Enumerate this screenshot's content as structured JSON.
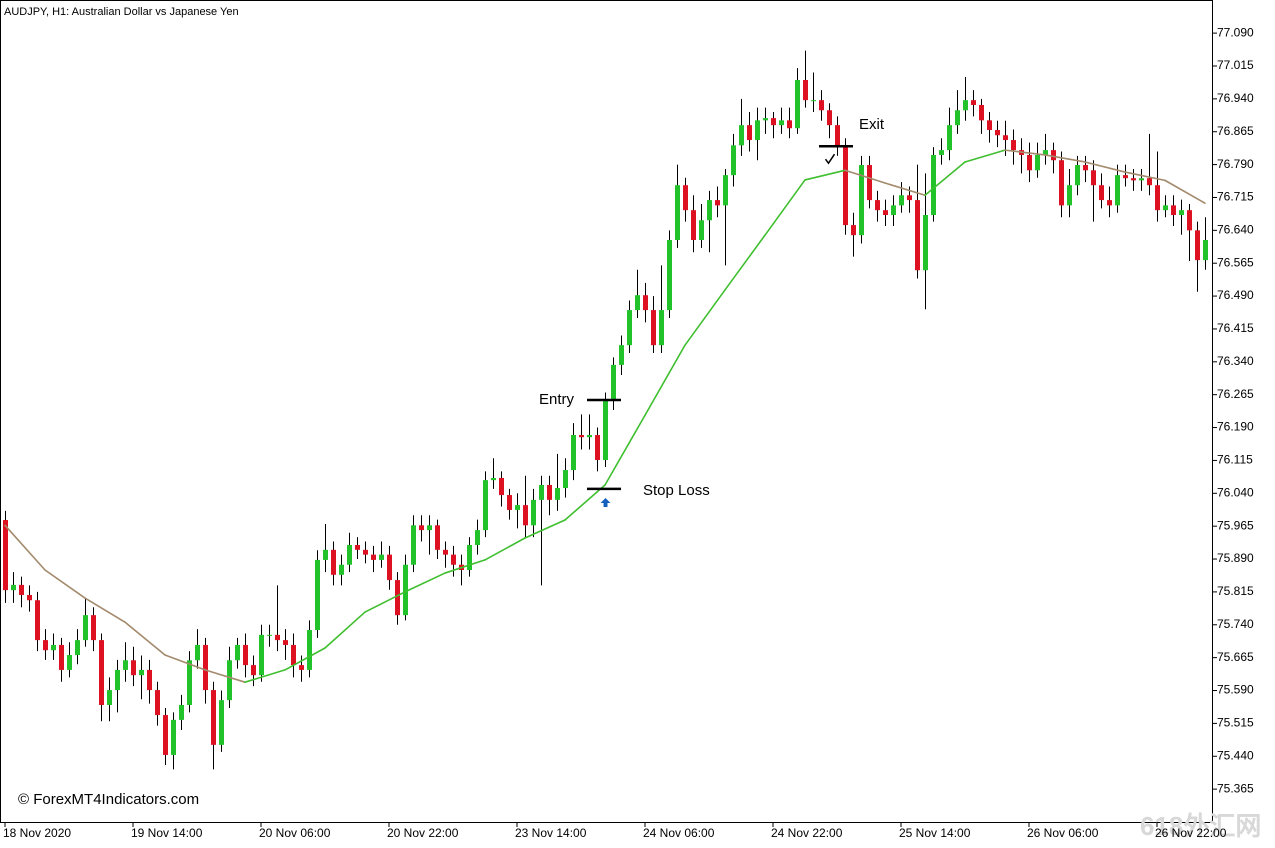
{
  "chart_data": {
    "type": "candlestick",
    "title": "AUDJPY, H1:  Australian Dollar vs Japanese Yen",
    "categories": [
      "18 Nov 2020",
      null,
      null,
      null,
      null,
      null,
      null,
      null,
      null,
      null,
      null,
      null,
      null,
      null,
      null,
      null,
      "19 Nov 14:00",
      null,
      null,
      null,
      null,
      null,
      null,
      null,
      null,
      null,
      null,
      null,
      null,
      null,
      null,
      null,
      "20 Nov 06:00",
      null,
      null,
      null,
      null,
      null,
      null,
      null,
      null,
      null,
      null,
      null,
      null,
      null,
      null,
      null,
      "20 Nov 22:00",
      null,
      null,
      null,
      null,
      null,
      null,
      null,
      null,
      null,
      null,
      null,
      null,
      null,
      null,
      null,
      "23 Nov 14:00",
      null,
      null,
      null,
      null,
      null,
      null,
      null,
      null,
      null,
      null,
      null,
      null,
      null,
      null,
      null,
      "24 Nov 06:00",
      null,
      null,
      null,
      null,
      null,
      null,
      null,
      null,
      null,
      null,
      null,
      null,
      null,
      null,
      null,
      "24 Nov 22:00",
      null,
      null,
      null,
      null,
      null,
      null,
      null,
      null,
      null,
      null,
      null,
      null,
      null,
      null,
      null,
      "25 Nov 14:00",
      null,
      null,
      null,
      null,
      null,
      null,
      null,
      null,
      null,
      null,
      null,
      null,
      null,
      null,
      null,
      "26 Nov 06:00",
      null,
      null,
      null,
      null,
      null,
      null,
      null,
      null,
      null,
      null,
      null,
      null,
      null,
      null,
      null,
      "26 Nov 22:00",
      null,
      null,
      null,
      null,
      null,
      null
    ],
    "series": [
      {
        "up_color": "#22c32a",
        "down_color": "#dd1122",
        "wick_color": "#000000",
        "open": [
          75.979,
          75.819,
          75.831,
          75.808,
          75.796,
          75.705,
          75.682,
          75.694,
          75.637,
          75.671,
          75.705,
          75.762,
          75.705,
          75.557,
          75.591,
          75.637,
          75.659,
          75.625,
          75.637,
          75.591,
          75.534,
          75.443,
          75.523,
          75.557,
          75.659,
          75.694,
          75.591,
          75.466,
          75.568,
          75.659,
          75.694,
          75.648,
          75.625,
          75.717,
          75.717,
          75.705,
          75.694,
          75.648,
          75.637,
          75.728,
          75.888,
          75.911,
          75.854,
          75.877,
          75.922,
          75.911,
          75.9,
          75.888,
          75.9,
          75.842,
          75.762,
          75.877,
          75.967,
          75.956,
          75.967,
          75.911,
          75.9,
          75.877,
          75.865,
          75.922,
          75.956,
          76.07,
          76.075,
          76.036,
          76.002,
          76.013,
          75.967,
          76.025,
          76.059,
          76.025,
          76.052,
          76.093,
          76.173,
          76.168,
          76.173,
          76.116,
          76.253,
          76.333,
          76.378,
          76.458,
          76.492,
          76.458,
          76.378,
          76.458,
          76.618,
          76.743,
          76.686,
          76.618,
          76.663,
          76.709,
          76.697,
          76.766,
          76.834,
          76.88,
          76.846,
          76.891,
          76.896,
          76.88,
          76.891,
          76.873,
          76.983,
          76.937,
          76.937,
          76.914,
          76.88,
          76.834,
          76.652,
          76.629,
          76.789,
          76.709,
          76.686,
          76.675,
          76.697,
          76.72,
          76.709,
          76.549,
          76.675,
          76.812,
          76.823,
          76.88,
          76.914,
          76.937,
          76.926,
          76.891,
          76.869,
          76.857,
          76.846,
          76.823,
          76.812,
          76.777,
          76.812,
          76.823,
          76.8,
          76.697,
          76.743,
          76.789,
          76.777,
          76.743,
          76.709,
          76.697,
          76.766,
          76.759,
          76.754,
          76.759,
          76.743,
          76.686,
          76.697,
          76.675,
          76.686,
          76.64,
          76.572
        ],
        "high": [
          76.0,
          75.86,
          75.85,
          75.83,
          75.815,
          75.73,
          75.72,
          75.71,
          75.7,
          75.73,
          75.8,
          75.78,
          75.72,
          75.62,
          75.66,
          75.7,
          75.69,
          75.67,
          75.66,
          75.61,
          75.55,
          75.54,
          75.58,
          75.68,
          75.73,
          75.71,
          75.61,
          75.59,
          75.69,
          75.71,
          75.72,
          75.67,
          75.74,
          75.74,
          75.83,
          75.73,
          75.72,
          75.67,
          75.75,
          75.91,
          75.97,
          75.93,
          75.9,
          75.95,
          75.94,
          75.93,
          75.92,
          75.93,
          75.92,
          75.86,
          75.9,
          75.99,
          75.99,
          75.99,
          75.98,
          75.93,
          75.92,
          75.9,
          75.94,
          75.98,
          76.09,
          76.12,
          76.09,
          76.05,
          76.04,
          76.08,
          76.05,
          76.08,
          76.08,
          76.13,
          76.12,
          76.2,
          76.22,
          76.22,
          76.19,
          76.27,
          76.35,
          76.4,
          76.48,
          76.55,
          76.52,
          76.49,
          76.56,
          76.64,
          76.79,
          76.76,
          76.72,
          76.7,
          76.73,
          76.74,
          76.78,
          76.86,
          76.94,
          76.91,
          76.92,
          76.92,
          76.91,
          76.92,
          76.92,
          77.01,
          77.05,
          77.0,
          76.96,
          76.93,
          76.9,
          76.85,
          76.68,
          76.81,
          76.81,
          76.73,
          76.71,
          76.72,
          76.75,
          76.74,
          76.79,
          76.77,
          76.83,
          76.85,
          76.92,
          76.96,
          76.99,
          76.96,
          76.94,
          76.91,
          76.89,
          76.89,
          76.87,
          76.85,
          76.84,
          76.84,
          76.86,
          76.84,
          76.82,
          76.78,
          76.81,
          76.81,
          76.8,
          76.77,
          76.74,
          76.79,
          76.79,
          76.78,
          76.78,
          76.86,
          76.82,
          76.72,
          76.72,
          76.71,
          76.7,
          76.66,
          76.67
        ],
        "low": [
          75.79,
          75.79,
          75.78,
          75.77,
          75.68,
          75.66,
          75.66,
          75.61,
          75.62,
          75.65,
          75.69,
          75.68,
          75.52,
          75.52,
          75.54,
          75.61,
          75.6,
          75.57,
          75.56,
          75.51,
          75.42,
          75.41,
          75.5,
          75.54,
          75.64,
          75.56,
          75.41,
          75.45,
          75.55,
          75.64,
          75.62,
          75.6,
          75.61,
          75.69,
          75.68,
          75.66,
          75.62,
          75.61,
          75.62,
          75.71,
          75.86,
          75.83,
          75.83,
          75.86,
          75.89,
          75.88,
          75.86,
          75.87,
          75.82,
          75.74,
          75.75,
          75.86,
          75.93,
          75.9,
          75.89,
          75.87,
          75.85,
          75.83,
          75.85,
          75.9,
          75.94,
          76.05,
          76.01,
          75.98,
          75.96,
          75.94,
          75.94,
          75.83,
          75.99,
          76.0,
          76.03,
          76.07,
          76.14,
          76.14,
          76.09,
          76.1,
          76.23,
          76.31,
          76.36,
          76.44,
          76.43,
          76.36,
          76.36,
          76.44,
          76.6,
          76.66,
          76.59,
          76.6,
          76.59,
          76.67,
          76.56,
          76.74,
          76.81,
          76.82,
          76.8,
          76.86,
          76.85,
          76.86,
          76.85,
          76.86,
          76.92,
          76.91,
          76.89,
          76.85,
          76.81,
          76.63,
          76.58,
          76.61,
          76.69,
          76.66,
          76.65,
          76.65,
          76.68,
          76.68,
          76.53,
          76.46,
          76.66,
          76.79,
          76.8,
          76.86,
          76.89,
          76.9,
          76.86,
          76.84,
          76.83,
          76.81,
          76.79,
          76.77,
          76.75,
          76.76,
          76.79,
          76.77,
          76.67,
          76.67,
          76.72,
          76.75,
          76.66,
          76.69,
          76.67,
          76.68,
          76.74,
          76.73,
          76.73,
          76.72,
          76.66,
          76.67,
          76.65,
          76.63,
          76.57,
          76.5,
          76.55
        ],
        "close": [
          75.819,
          75.831,
          75.808,
          75.796,
          75.705,
          75.682,
          75.694,
          75.637,
          75.671,
          75.705,
          75.762,
          75.705,
          75.557,
          75.591,
          75.637,
          75.659,
          75.625,
          75.637,
          75.591,
          75.534,
          75.443,
          75.523,
          75.557,
          75.659,
          75.694,
          75.591,
          75.466,
          75.568,
          75.659,
          75.694,
          75.648,
          75.625,
          75.717,
          75.717,
          75.705,
          75.694,
          75.648,
          75.637,
          75.728,
          75.888,
          75.911,
          75.854,
          75.877,
          75.922,
          75.911,
          75.9,
          75.888,
          75.9,
          75.842,
          75.762,
          75.877,
          75.967,
          75.956,
          75.967,
          75.911,
          75.9,
          75.877,
          75.865,
          75.922,
          75.956,
          76.07,
          76.075,
          76.036,
          76.002,
          76.013,
          75.967,
          76.025,
          76.059,
          76.025,
          76.052,
          76.093,
          76.173,
          76.168,
          76.173,
          76.116,
          76.253,
          76.333,
          76.378,
          76.458,
          76.492,
          76.458,
          76.378,
          76.458,
          76.618,
          76.743,
          76.686,
          76.618,
          76.663,
          76.709,
          76.697,
          76.766,
          76.834,
          76.88,
          76.846,
          76.891,
          76.896,
          76.88,
          76.891,
          76.873,
          76.983,
          76.937,
          76.937,
          76.914,
          76.88,
          76.834,
          76.652,
          76.629,
          76.789,
          76.709,
          76.686,
          76.675,
          76.697,
          76.72,
          76.709,
          76.549,
          76.675,
          76.812,
          76.823,
          76.88,
          76.914,
          76.937,
          76.926,
          76.891,
          76.869,
          76.857,
          76.846,
          76.823,
          76.812,
          76.777,
          76.812,
          76.823,
          76.8,
          76.697,
          76.743,
          76.789,
          76.777,
          76.743,
          76.709,
          76.697,
          76.766,
          76.759,
          76.754,
          76.759,
          76.743,
          76.686,
          76.697,
          76.675,
          76.686,
          76.64,
          76.572,
          76.618
        ]
      }
    ],
    "moving_average": {
      "up_color": "#3fbf2f",
      "down_color": "#a38a6c",
      "x": [
        0,
        5,
        10,
        15,
        20,
        25,
        30,
        35,
        40,
        45,
        50,
        55,
        60,
        65,
        70,
        75,
        80,
        85,
        90,
        95,
        100,
        105,
        110,
        115,
        120,
        125,
        130,
        135,
        140,
        145,
        150
      ],
      "values": [
        75.967,
        75.865,
        75.801,
        75.746,
        75.671,
        75.637,
        75.609,
        75.637,
        75.687,
        75.769,
        75.815,
        75.858,
        75.888,
        75.938,
        75.979,
        76.059,
        76.218,
        76.378,
        76.504,
        76.629,
        76.755,
        76.777,
        76.748,
        76.72,
        76.796,
        76.823,
        76.812,
        76.796,
        76.773,
        76.754,
        76.702
      ]
    },
    "ylim": [
      75.29,
      77.161
    ],
    "yticks": [
      {
        "value": 77.09,
        "label": "77.090"
      },
      77.015,
      {
        "value": 76.94,
        "label": "76.940"
      },
      76.865,
      {
        "value": 76.79,
        "label": "76.790"
      },
      76.715,
      {
        "value": 76.64,
        "label": "76.640"
      },
      76.565,
      {
        "value": 76.49,
        "label": "76.490"
      },
      76.415,
      {
        "value": 76.34,
        "label": "76.340"
      },
      76.265,
      {
        "value": 76.19,
        "label": "76.190"
      },
      76.115,
      {
        "value": 76.04,
        "label": "76.040"
      },
      75.965,
      {
        "value": 75.89,
        "label": "75.890"
      },
      75.815,
      {
        "value": 75.74,
        "label": "75.740"
      },
      75.665,
      {
        "value": 75.59,
        "label": "75.590"
      },
      75.515,
      {
        "value": 75.44,
        "label": "75.440"
      },
      75.365
    ],
    "annotations": [
      {
        "text": "Entry",
        "level": 76.253,
        "index": 75
      },
      {
        "text": "Stop Loss",
        "level": 76.05,
        "index": 75
      },
      {
        "text": "Exit",
        "level": 76.832,
        "index": 104
      }
    ],
    "signals": [
      {
        "type": "buy",
        "index": 75,
        "price": 76.018,
        "color": "#1560bd"
      },
      {
        "type": "exit",
        "index": 103,
        "price": 76.8,
        "color": "#000000"
      }
    ]
  },
  "watermarks": [
    "© ForexMT4Indicators.com",
    "618外汇网"
  ]
}
